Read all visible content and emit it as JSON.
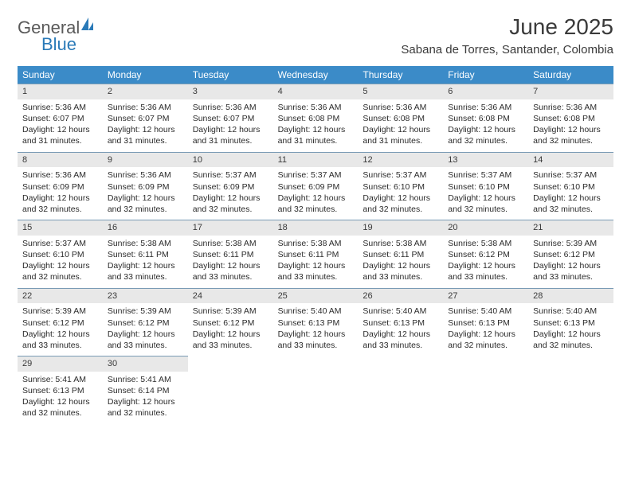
{
  "logo": {
    "text1": "General",
    "text2": "Blue"
  },
  "title": "June 2025",
  "location": "Sabana de Torres, Santander, Colombia",
  "colors": {
    "header_bg": "#3b8bc8",
    "header_text": "#ffffff",
    "daynum_bg": "#e8e8e8",
    "border": "#7a9bb5",
    "text": "#2b2b2b",
    "title_text": "#3a3a3a",
    "logo_gray": "#5a5a5a",
    "logo_blue": "#2a7ab8"
  },
  "weekdays": [
    "Sunday",
    "Monday",
    "Tuesday",
    "Wednesday",
    "Thursday",
    "Friday",
    "Saturday"
  ],
  "days": [
    {
      "n": 1,
      "sunrise": "5:36 AM",
      "sunset": "6:07 PM",
      "dlh": 12,
      "dlm": 31
    },
    {
      "n": 2,
      "sunrise": "5:36 AM",
      "sunset": "6:07 PM",
      "dlh": 12,
      "dlm": 31
    },
    {
      "n": 3,
      "sunrise": "5:36 AM",
      "sunset": "6:07 PM",
      "dlh": 12,
      "dlm": 31
    },
    {
      "n": 4,
      "sunrise": "5:36 AM",
      "sunset": "6:08 PM",
      "dlh": 12,
      "dlm": 31
    },
    {
      "n": 5,
      "sunrise": "5:36 AM",
      "sunset": "6:08 PM",
      "dlh": 12,
      "dlm": 31
    },
    {
      "n": 6,
      "sunrise": "5:36 AM",
      "sunset": "6:08 PM",
      "dlh": 12,
      "dlm": 32
    },
    {
      "n": 7,
      "sunrise": "5:36 AM",
      "sunset": "6:08 PM",
      "dlh": 12,
      "dlm": 32
    },
    {
      "n": 8,
      "sunrise": "5:36 AM",
      "sunset": "6:09 PM",
      "dlh": 12,
      "dlm": 32
    },
    {
      "n": 9,
      "sunrise": "5:36 AM",
      "sunset": "6:09 PM",
      "dlh": 12,
      "dlm": 32
    },
    {
      "n": 10,
      "sunrise": "5:37 AM",
      "sunset": "6:09 PM",
      "dlh": 12,
      "dlm": 32
    },
    {
      "n": 11,
      "sunrise": "5:37 AM",
      "sunset": "6:09 PM",
      "dlh": 12,
      "dlm": 32
    },
    {
      "n": 12,
      "sunrise": "5:37 AM",
      "sunset": "6:10 PM",
      "dlh": 12,
      "dlm": 32
    },
    {
      "n": 13,
      "sunrise": "5:37 AM",
      "sunset": "6:10 PM",
      "dlh": 12,
      "dlm": 32
    },
    {
      "n": 14,
      "sunrise": "5:37 AM",
      "sunset": "6:10 PM",
      "dlh": 12,
      "dlm": 32
    },
    {
      "n": 15,
      "sunrise": "5:37 AM",
      "sunset": "6:10 PM",
      "dlh": 12,
      "dlm": 32
    },
    {
      "n": 16,
      "sunrise": "5:38 AM",
      "sunset": "6:11 PM",
      "dlh": 12,
      "dlm": 33
    },
    {
      "n": 17,
      "sunrise": "5:38 AM",
      "sunset": "6:11 PM",
      "dlh": 12,
      "dlm": 33
    },
    {
      "n": 18,
      "sunrise": "5:38 AM",
      "sunset": "6:11 PM",
      "dlh": 12,
      "dlm": 33
    },
    {
      "n": 19,
      "sunrise": "5:38 AM",
      "sunset": "6:11 PM",
      "dlh": 12,
      "dlm": 33
    },
    {
      "n": 20,
      "sunrise": "5:38 AM",
      "sunset": "6:12 PM",
      "dlh": 12,
      "dlm": 33
    },
    {
      "n": 21,
      "sunrise": "5:39 AM",
      "sunset": "6:12 PM",
      "dlh": 12,
      "dlm": 33
    },
    {
      "n": 22,
      "sunrise": "5:39 AM",
      "sunset": "6:12 PM",
      "dlh": 12,
      "dlm": 33
    },
    {
      "n": 23,
      "sunrise": "5:39 AM",
      "sunset": "6:12 PM",
      "dlh": 12,
      "dlm": 33
    },
    {
      "n": 24,
      "sunrise": "5:39 AM",
      "sunset": "6:12 PM",
      "dlh": 12,
      "dlm": 33
    },
    {
      "n": 25,
      "sunrise": "5:40 AM",
      "sunset": "6:13 PM",
      "dlh": 12,
      "dlm": 33
    },
    {
      "n": 26,
      "sunrise": "5:40 AM",
      "sunset": "6:13 PM",
      "dlh": 12,
      "dlm": 33
    },
    {
      "n": 27,
      "sunrise": "5:40 AM",
      "sunset": "6:13 PM",
      "dlh": 12,
      "dlm": 32
    },
    {
      "n": 28,
      "sunrise": "5:40 AM",
      "sunset": "6:13 PM",
      "dlh": 12,
      "dlm": 32
    },
    {
      "n": 29,
      "sunrise": "5:41 AM",
      "sunset": "6:13 PM",
      "dlh": 12,
      "dlm": 32
    },
    {
      "n": 30,
      "sunrise": "5:41 AM",
      "sunset": "6:14 PM",
      "dlh": 12,
      "dlm": 32
    }
  ],
  "labels": {
    "sunrise": "Sunrise:",
    "sunset": "Sunset:",
    "daylight_prefix": "Daylight:",
    "hours_word": "hours",
    "and_word": "and",
    "minutes_word": "minutes."
  },
  "layout": {
    "first_weekday_index": 0,
    "columns": 7,
    "cell_fontsize": 10.5,
    "header_fontsize": 12,
    "title_fontsize": 28,
    "location_fontsize": 15
  }
}
